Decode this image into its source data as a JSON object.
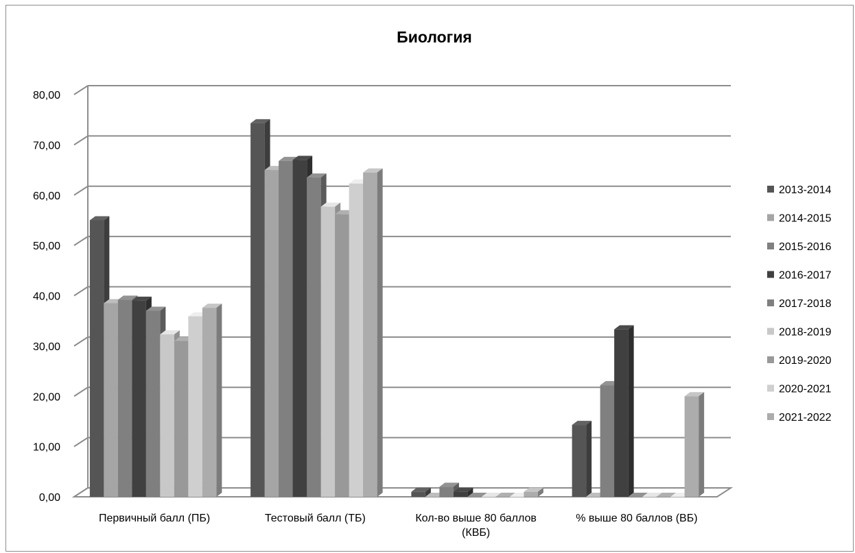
{
  "chart_data": {
    "type": "bar",
    "title": "Биология",
    "xlabel": "",
    "ylabel": "",
    "ylim": [
      0,
      80
    ],
    "y_ticks": [
      "0,00",
      "10,00",
      "20,00",
      "30,00",
      "40,00",
      "50,00",
      "60,00",
      "70,00",
      "80,00"
    ],
    "grid": true,
    "style": "3d-clustered-column",
    "legend_position": "right",
    "categories": [
      [
        "Первичный балл (ПБ)"
      ],
      [
        "Тестовый балл (ТБ)"
      ],
      [
        "Кол-во выше 80 баллов",
        "(КВБ)"
      ],
      [
        "% выше 80 баллов (ВБ)"
      ]
    ],
    "series": [
      {
        "name": "2013-2014",
        "color": "#555555",
        "values": [
          55.0,
          74.3,
          1.0,
          14.3
        ]
      },
      {
        "name": "2014-2015",
        "color": "#a5a5a5",
        "values": [
          38.5,
          65.0,
          0.0,
          0.0
        ]
      },
      {
        "name": "2015-2016",
        "color": "#808080",
        "values": [
          39.2,
          66.8,
          2.0,
          22.2
        ]
      },
      {
        "name": "2016-2017",
        "color": "#404040",
        "values": [
          39.0,
          67.0,
          1.0,
          33.3
        ]
      },
      {
        "name": "2017-2018",
        "color": "#7f7f7f",
        "values": [
          37.0,
          63.5,
          0.0,
          0.0
        ]
      },
      {
        "name": "2018-2019",
        "color": "#c8c8c8",
        "values": [
          32.3,
          57.7,
          0.0,
          0.0
        ]
      },
      {
        "name": "2019-2020",
        "color": "#999999",
        "values": [
          31.0,
          56.2,
          0.0,
          0.0
        ]
      },
      {
        "name": "2020-2021",
        "color": "#cfcfcf",
        "values": [
          35.9,
          62.3,
          0.0,
          0.0
        ]
      },
      {
        "name": "2021-2022",
        "color": "#acacac",
        "values": [
          37.6,
          64.5,
          1.0,
          20.0
        ]
      }
    ]
  }
}
